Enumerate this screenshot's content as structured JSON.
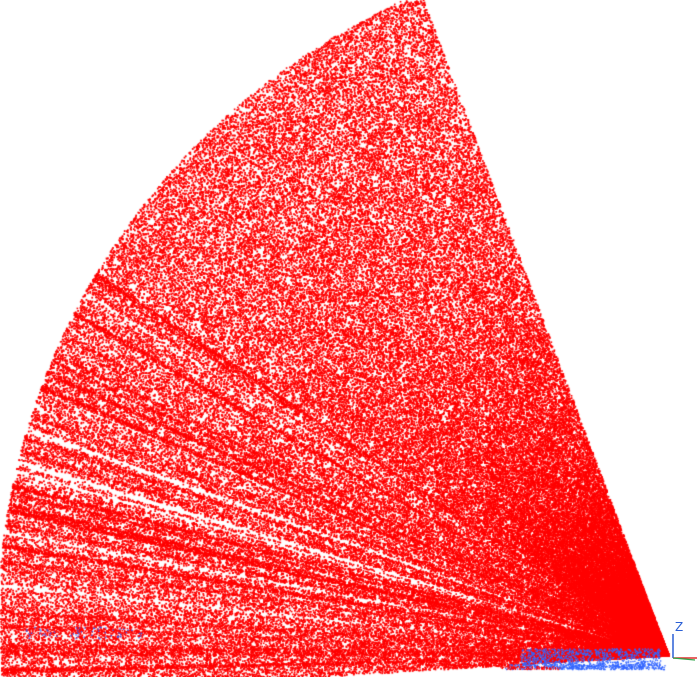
{
  "window": {
    "background_color": "#ffffff"
  },
  "point_cloud": {
    "primary_color": "#ff0000",
    "secondary_color": "#3366ff"
  },
  "axis_triad": {
    "z_label": "Z",
    "z_color": "#2a5fd6",
    "x_color": "#e03030",
    "y_color": "#2ea84a"
  }
}
